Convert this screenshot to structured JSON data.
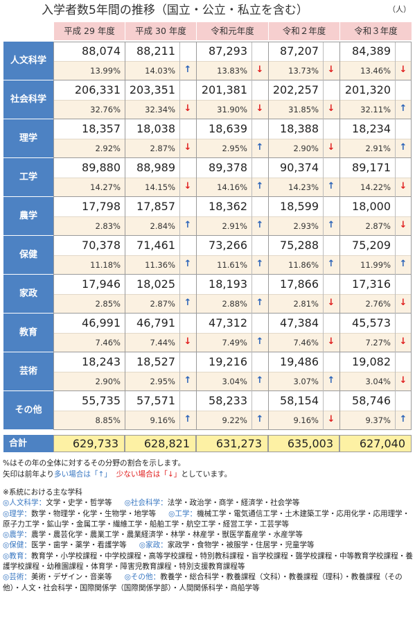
{
  "title": "入学者数5年間の推移（国立・公立・私立を含む）",
  "unit": "（人）",
  "table": {
    "headers": [
      "平成 29 年度",
      "平成 30 年度",
      "令和元年度",
      "令和２年度",
      "令和３年度"
    ],
    "rows": [
      {
        "label": "人文科学",
        "counts": [
          "88,074",
          "88,211",
          "87,293",
          "87,207",
          "84,389"
        ],
        "percents": [
          "13.99%",
          "14.03%",
          "13.83%",
          "13.73%",
          "13.46%"
        ],
        "arrows": [
          "↑",
          "↓",
          "↓",
          "↓"
        ]
      },
      {
        "label": "社会科学",
        "counts": [
          "206,331",
          "203,351",
          "201,381",
          "202,257",
          "201,320"
        ],
        "percents": [
          "32.76%",
          "32.34%",
          "31.90%",
          "31.85%",
          "32.11%"
        ],
        "arrows": [
          "↓",
          "↓",
          "↓",
          "↑"
        ]
      },
      {
        "label": "理学",
        "counts": [
          "18,357",
          "18,038",
          "18,639",
          "18,388",
          "18,234"
        ],
        "percents": [
          "2.92%",
          "2.87%",
          "2.95%",
          "2.90%",
          "2.91%"
        ],
        "arrows": [
          "↓",
          "↑",
          "↓",
          "↑"
        ]
      },
      {
        "label": "工学",
        "counts": [
          "89,880",
          "88,989",
          "89,378",
          "90,374",
          "89,171"
        ],
        "percents": [
          "14.27%",
          "14.15%",
          "14.16%",
          "14.23%",
          "14.22%"
        ],
        "arrows": [
          "↓",
          "↑",
          "↑",
          "↓"
        ]
      },
      {
        "label": "農学",
        "counts": [
          "17,798",
          "17,857",
          "18,362",
          "18,599",
          "18,000"
        ],
        "percents": [
          "2.83%",
          "2.84%",
          "2.91%",
          "2.93%",
          "2.87%"
        ],
        "arrows": [
          "↑",
          "↑",
          "↑",
          "↓"
        ]
      },
      {
        "label": "保健",
        "counts": [
          "70,378",
          "71,461",
          "73,266",
          "75,288",
          "75,209"
        ],
        "percents": [
          "11.18%",
          "11.36%",
          "11.61%",
          "11.86%",
          "11.99%"
        ],
        "arrows": [
          "↑",
          "↑",
          "↑",
          "↑"
        ]
      },
      {
        "label": "家政",
        "counts": [
          "17,946",
          "18,025",
          "18,193",
          "17,866",
          "17,316"
        ],
        "percents": [
          "2.85%",
          "2.87%",
          "2.88%",
          "2.81%",
          "2.76%"
        ],
        "arrows": [
          "↑",
          "↑",
          "↓",
          "↓"
        ]
      },
      {
        "label": "教育",
        "counts": [
          "46,991",
          "46,791",
          "47,312",
          "47,384",
          "45,573"
        ],
        "percents": [
          "7.46%",
          "7.44%",
          "7.49%",
          "7.46%",
          "7.27%"
        ],
        "arrows": [
          "↓",
          "↑",
          "↓",
          "↓"
        ]
      },
      {
        "label": "芸術",
        "counts": [
          "18,243",
          "18,527",
          "19,216",
          "19,486",
          "19,082"
        ],
        "percents": [
          "2.90%",
          "2.95%",
          "3.04%",
          "3.07%",
          "3.04%"
        ],
        "arrows": [
          "↑",
          "↑",
          "↑",
          "↓"
        ]
      },
      {
        "label": "その他",
        "counts": [
          "55,735",
          "57,571",
          "58,233",
          "58,154",
          "58,746"
        ],
        "percents": [
          "8.85%",
          "9.16%",
          "9.22%",
          "9.16%",
          "9.37%"
        ],
        "arrows": [
          "↑",
          "↑",
          "↓",
          "↑"
        ]
      }
    ],
    "total": {
      "label": "合計",
      "counts": [
        "629,733",
        "628,821",
        "631,273",
        "635,003",
        "627,040"
      ]
    }
  },
  "notes": {
    "line1": "%はその年の全体に対するその分野の割合を示します。",
    "line2": [
      "矢印は前年より",
      "多い場合は「↑」",
      "少ない場合は「↓」",
      "としています。"
    ]
  },
  "footnote": {
    "title": "※系統における主な学科",
    "items": [
      {
        "label": "◎人文科学：",
        "text": "文学・史学・哲学等"
      },
      {
        "label": "◎社会科学：",
        "text": "法学・政治学・商学・経済学・社会学等"
      },
      {
        "label": "◎理学：",
        "text": "数学・物理学・化学・生物学・地学等"
      },
      {
        "label": "◎工学：",
        "text": "機械工学・電気通信工学・土木建築工学・応用化学・応用理学・原子力工学・鉱山学・金属工学・繊維工学・船舶工学・航空工学・経営工学・工芸学等"
      },
      {
        "label": "◎農学：",
        "text": "農学・農芸化学・農業工学・農業経済学・林学・林産学・獣医学畜産学・水産学等"
      },
      {
        "label": "◎保健：",
        "text": "医学・歯学・薬学・看護学等"
      },
      {
        "label": "◎家政：",
        "text": "家政学・食物学・被服学・住居学・児童学等"
      },
      {
        "label": "◎教育：",
        "text": "教育学・小学校課程・中学校課程・高等学校課程・特別教科課程・盲学校課程・聾学校課程・中等教育学校課程・養護学校課程・幼稚園課程・体育学・障害児教育課程・特別支援教育課程等"
      },
      {
        "label": "◎芸術：",
        "text": "美術・デザイン・音楽等"
      },
      {
        "label": "◎その他：",
        "text": "教養学・総合科学・教養課程（文科）・教養課程（理科）・教養課程（その他）・人文・社会科学・国際関係学（国際関係学部）・人間関係科学・商船学等"
      }
    ]
  }
}
